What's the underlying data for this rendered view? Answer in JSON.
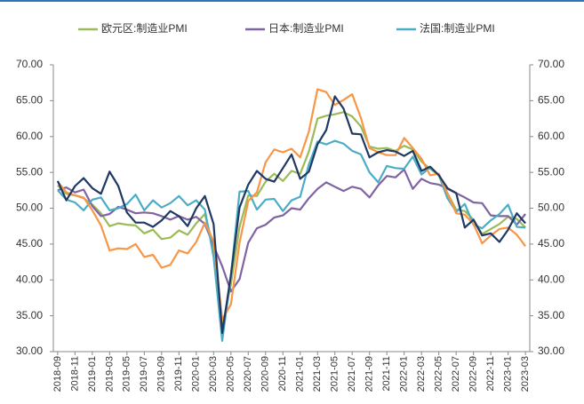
{
  "chart_data": {
    "type": "line",
    "categories": [
      "2018-09",
      null,
      "2018-11",
      null,
      "2019-01",
      null,
      "2019-03",
      null,
      "2019-05",
      null,
      "2019-07",
      null,
      "2019-09",
      null,
      "2019-11",
      null,
      "2020-01",
      null,
      "2020-03",
      null,
      "2020-05",
      null,
      "2020-07",
      null,
      "2020-09",
      null,
      "2020-11",
      null,
      "2021-01",
      null,
      "2021-03",
      null,
      "2021-05",
      null,
      "2021-07",
      null,
      "2021-09",
      null,
      "2021-11",
      null,
      "2022-01",
      null,
      "2022-03",
      null,
      "2022-05",
      null,
      "2022-07",
      null,
      "2022-09",
      null,
      "2022-11",
      null,
      "2023-01",
      null,
      "2023-03"
    ],
    "series": [
      {
        "name": "欧元区:制造业PMI",
        "color": "#9bbb59",
        "values": [
          53.2,
          52.0,
          51.8,
          51.4,
          50.5,
          49.3,
          47.5,
          47.9,
          47.7,
          47.6,
          46.5,
          47.0,
          45.7,
          45.9,
          46.9,
          46.3,
          47.9,
          49.2,
          44.5,
          33.4,
          39.4,
          47.4,
          51.8,
          51.7,
          53.7,
          54.8,
          53.8,
          55.2,
          54.8,
          57.9,
          62.5,
          62.9,
          63.1,
          63.4,
          62.8,
          61.4,
          58.6,
          58.3,
          58.4,
          58.0,
          58.7,
          58.2,
          56.5,
          55.5,
          54.6,
          52.1,
          49.8,
          49.6,
          48.4,
          46.4,
          47.1,
          47.8,
          48.8,
          48.5,
          47.3
        ]
      },
      {
        "name": "日本:制造业PMI",
        "color": "#8064a2",
        "values": [
          52.5,
          52.9,
          52.2,
          52.6,
          50.3,
          48.9,
          49.2,
          50.2,
          49.8,
          49.3,
          49.4,
          49.3,
          48.9,
          48.4,
          48.9,
          48.4,
          48.8,
          47.8,
          44.8,
          41.9,
          38.4,
          40.1,
          45.2,
          47.2,
          47.7,
          48.7,
          49.0,
          50.0,
          49.8,
          51.4,
          52.7,
          53.6,
          53.0,
          52.4,
          53.0,
          52.7,
          51.5,
          53.2,
          54.5,
          54.3,
          55.4,
          52.7,
          54.1,
          53.5,
          53.3,
          52.7,
          52.1,
          51.5,
          50.8,
          50.7,
          49.0,
          48.9,
          48.9,
          47.7,
          49.2
        ]
      },
      {
        "name": "法国:制造业PMI",
        "color": "#4bacc6",
        "values": [
          52.5,
          51.2,
          50.8,
          49.7,
          51.2,
          51.5,
          49.7,
          50.0,
          50.6,
          51.9,
          49.7,
          51.1,
          50.1,
          50.7,
          51.7,
          50.4,
          51.1,
          49.8,
          43.2,
          31.5,
          40.6,
          52.3,
          52.4,
          49.8,
          51.2,
          51.3,
          49.6,
          51.1,
          51.6,
          56.1,
          59.3,
          58.9,
          59.4,
          59.0,
          58.0,
          57.5,
          55.0,
          53.6,
          55.9,
          55.6,
          55.5,
          57.2,
          54.7,
          55.7,
          54.6,
          51.4,
          49.5,
          50.6,
          47.7,
          47.2,
          48.3,
          49.2,
          50.5,
          47.4,
          47.3
        ]
      },
      {
        "color": "#f79646",
        "values": [
          53.7,
          52.2,
          51.8,
          51.5,
          49.7,
          47.6,
          44.1,
          44.4,
          44.3,
          45.0,
          43.2,
          43.5,
          41.7,
          42.1,
          44.1,
          43.7,
          45.3,
          48.0,
          45.4,
          34.5,
          36.6,
          45.2,
          51.0,
          52.2,
          56.4,
          58.2,
          57.8,
          58.3,
          57.1,
          60.7,
          66.6,
          66.2,
          64.4,
          65.1,
          65.9,
          62.6,
          58.4,
          57.8,
          57.4,
          57.4,
          59.8,
          58.4,
          56.9,
          54.6,
          54.8,
          52.0,
          49.3,
          49.1,
          47.8,
          45.1,
          46.2,
          47.1,
          47.3,
          46.3,
          44.7
        ]
      },
      {
        "color": "#1f3864",
        "values": [
          53.8,
          51.1,
          53.1,
          54.2,
          52.8,
          52.0,
          55.1,
          53.1,
          49.4,
          48.0,
          48.0,
          47.4,
          48.3,
          49.6,
          48.9,
          47.5,
          50.0,
          51.7,
          47.8,
          32.6,
          40.7,
          50.1,
          53.3,
          55.2,
          54.1,
          53.7,
          55.6,
          57.5,
          54.1,
          55.1,
          58.9,
          60.9,
          65.6,
          63.9,
          60.4,
          60.3,
          57.1,
          57.8,
          58.1,
          57.9,
          57.3,
          58.0,
          55.2,
          55.8,
          54.6,
          52.8,
          52.1,
          47.3,
          48.4,
          46.2,
          46.5,
          45.3,
          47.0,
          49.3,
          47.9
        ]
      }
    ],
    "ylim": [
      30,
      70
    ],
    "yticks": [
      {
        "value": 30,
        "label": "30.00"
      },
      {
        "value": 35,
        "label": "35.00"
      },
      {
        "value": 40,
        "label": "40.00"
      },
      {
        "value": 45,
        "label": "45.00"
      },
      {
        "value": 50,
        "label": "50.00"
      },
      {
        "value": 55,
        "label": "55.00"
      },
      {
        "value": 60,
        "label": "60.00"
      },
      {
        "value": 65,
        "label": "65.00"
      },
      {
        "value": 70,
        "label": "70.00"
      }
    ],
    "y2lim": [
      30,
      70
    ],
    "y2ticks": [
      {
        "value": 30,
        "label": "30.00"
      },
      {
        "value": 35,
        "label": "35.00"
      },
      {
        "value": 40,
        "label": "40.00"
      },
      {
        "value": 45,
        "label": "45.00"
      },
      {
        "value": 50,
        "label": "50.00"
      },
      {
        "value": 55,
        "label": "55.00"
      },
      {
        "value": 60,
        "label": "60.00"
      },
      {
        "value": 65,
        "label": "65.00"
      },
      {
        "value": 70,
        "label": "70.00"
      }
    ],
    "grid": false,
    "legend": "top"
  }
}
